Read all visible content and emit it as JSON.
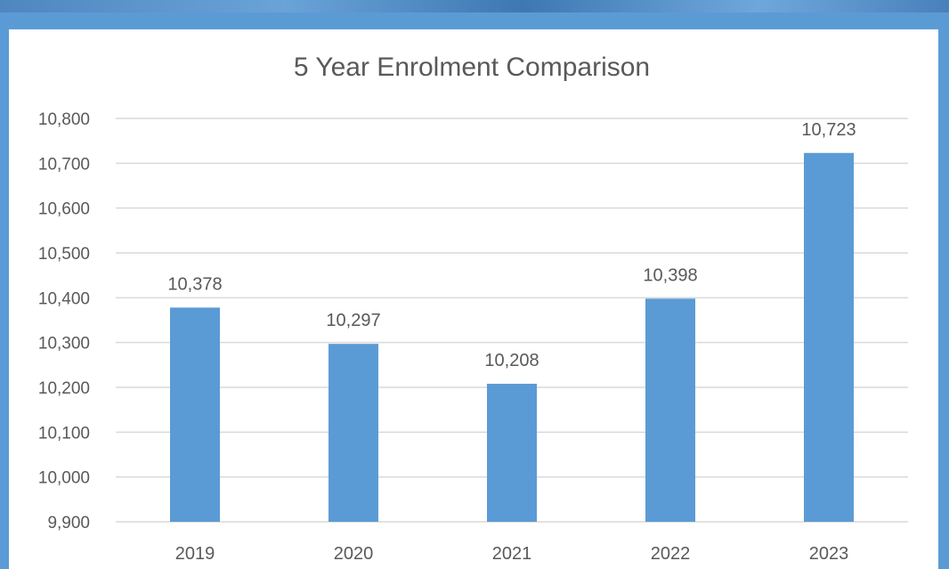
{
  "colors": {
    "background": "#5b9bd5",
    "panel": "#ffffff",
    "bar": "#5b9bd5",
    "grid": "#d9d9d9",
    "text": "#595959"
  },
  "chart_data": {
    "type": "bar",
    "title": "5 Year Enrolment Comparison",
    "xlabel": "",
    "ylabel": "",
    "categories": [
      "2019",
      "2020",
      "2021",
      "2022",
      "2023"
    ],
    "values": [
      10378,
      10297,
      10208,
      10398,
      10723
    ],
    "value_labels": [
      "10,378",
      "10,297",
      "10,208",
      "10,398",
      "10,723"
    ],
    "ylim": [
      9900,
      10800
    ],
    "yticks": [
      9900,
      10000,
      10100,
      10200,
      10300,
      10400,
      10500,
      10600,
      10700,
      10800
    ],
    "ytick_labels": [
      "9,900",
      "10,000",
      "10,100",
      "10,200",
      "10,300",
      "10,400",
      "10,500",
      "10,600",
      "10,700",
      "10,800"
    ],
    "grid": true,
    "legend": "none"
  }
}
